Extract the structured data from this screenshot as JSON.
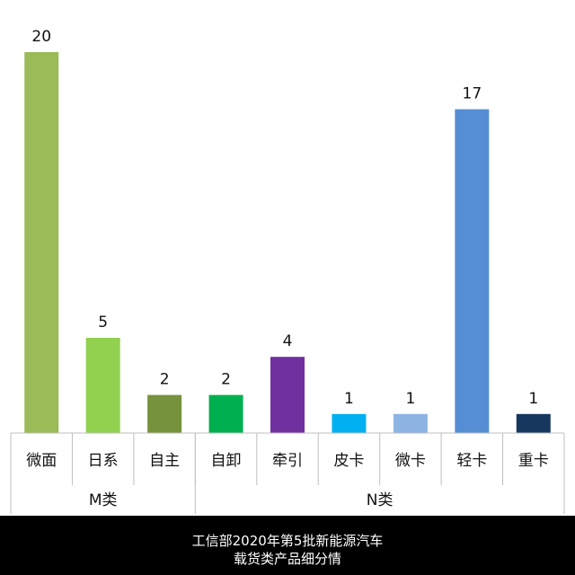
{
  "chart_data": {
    "type": "bar",
    "categories": [
      "微面",
      "日系",
      "自主",
      "自卸",
      "牵引",
      "皮卡",
      "微卡",
      "轻卡",
      "重卡"
    ],
    "values": [
      20,
      5,
      2,
      2,
      4,
      1,
      1,
      17,
      1
    ],
    "colors": [
      "#9bbb59",
      "#92d050",
      "#76923c",
      "#00b050",
      "#7030a0",
      "#00b0f0",
      "#8db4e2",
      "#558ed5",
      "#17375e"
    ],
    "groups": [
      {
        "label": "M类",
        "count": 3
      },
      {
        "label": "N类",
        "count": 6
      }
    ],
    "ylim": [
      0,
      20
    ],
    "grid": false,
    "legend": "none"
  },
  "caption": {
    "line1": "工信部2020年第5批新能源汽车",
    "line2": "载货类产品细分情"
  }
}
